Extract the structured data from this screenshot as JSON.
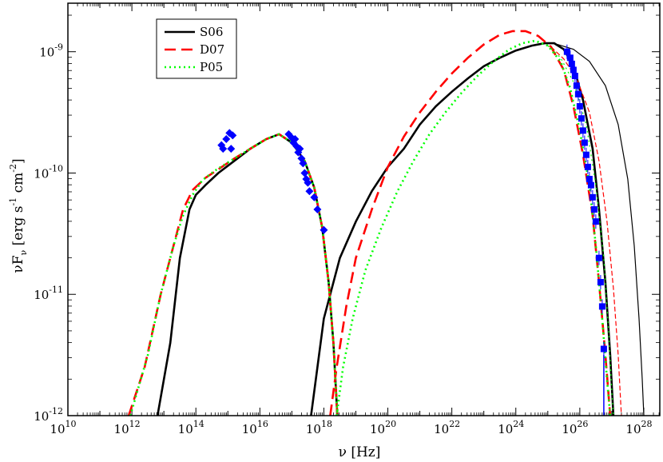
{
  "chart_data": {
    "type": "line",
    "title": "",
    "xlabel": {
      "main": "ν [Hz]"
    },
    "ylabel": {
      "main": "νF",
      "sub": "ν",
      "bracket": "[erg s",
      "exp1": "-1",
      "cm": " cm",
      "exp2": "-2",
      "close": "]"
    },
    "x_scale": "log",
    "y_scale": "log",
    "xlim_log10": [
      10,
      28.5
    ],
    "ylim_log10": [
      -12,
      -8.6
    ],
    "x_ticks": [
      {
        "base": "10",
        "exp": "10",
        "v": 10
      },
      {
        "base": "10",
        "exp": "12",
        "v": 12
      },
      {
        "base": "10",
        "exp": "14",
        "v": 14
      },
      {
        "base": "10",
        "exp": "16",
        "v": 16
      },
      {
        "base": "10",
        "exp": "18",
        "v": 18
      },
      {
        "base": "10",
        "exp": "20",
        "v": 20
      },
      {
        "base": "10",
        "exp": "22",
        "v": 22
      },
      {
        "base": "10",
        "exp": "24",
        "v": 24
      },
      {
        "base": "10",
        "exp": "26",
        "v": 26
      },
      {
        "base": "10",
        "exp": "28",
        "v": 28
      }
    ],
    "y_ticks": [
      {
        "base": "10",
        "exp": "-12",
        "v": -12
      },
      {
        "base": "10",
        "exp": "-11",
        "v": -11
      },
      {
        "base": "10",
        "exp": "-10",
        "v": -10
      },
      {
        "base": "10",
        "exp": "-9",
        "v": -9
      }
    ],
    "legend": {
      "position": "top-left"
    },
    "series": [
      {
        "name": "S06",
        "color": "#000000",
        "dash": "solid",
        "sync": [
          [
            12.8,
            -12
          ],
          [
            13.2,
            -11.4
          ],
          [
            13.5,
            -10.7
          ],
          [
            13.8,
            -10.3
          ],
          [
            14.0,
            -10.18
          ],
          [
            14.3,
            -10.1
          ],
          [
            14.7,
            -10.0
          ],
          [
            15.2,
            -9.9
          ],
          [
            15.7,
            -9.8
          ],
          [
            16.2,
            -9.72
          ],
          [
            16.6,
            -9.68
          ],
          [
            17.0,
            -9.75
          ],
          [
            17.4,
            -9.9
          ],
          [
            17.7,
            -10.12
          ],
          [
            17.95,
            -10.45
          ],
          [
            18.15,
            -10.9
          ],
          [
            18.3,
            -11.4
          ],
          [
            18.42,
            -12
          ]
        ],
        "ic": [
          [
            17.6,
            -12
          ],
          [
            17.8,
            -11.6
          ],
          [
            18.0,
            -11.2
          ],
          [
            18.5,
            -10.7
          ],
          [
            19.0,
            -10.4
          ],
          [
            19.5,
            -10.15
          ],
          [
            20.0,
            -9.95
          ],
          [
            20.5,
            -9.8
          ],
          [
            21.0,
            -9.6
          ],
          [
            21.5,
            -9.45
          ],
          [
            22.0,
            -9.33
          ],
          [
            22.5,
            -9.22
          ],
          [
            23.0,
            -9.12
          ],
          [
            23.5,
            -9.05
          ],
          [
            24.0,
            -8.99
          ],
          [
            24.5,
            -8.95
          ],
          [
            24.9,
            -8.93
          ],
          [
            25.2,
            -8.93
          ],
          [
            25.5,
            -8.98
          ],
          [
            25.8,
            -9.12
          ],
          [
            26.1,
            -9.4
          ],
          [
            26.4,
            -9.8
          ],
          [
            26.6,
            -10.3
          ],
          [
            26.8,
            -10.9
          ],
          [
            26.95,
            -11.5
          ],
          [
            27.05,
            -12
          ]
        ],
        "ic_thin": [
          [
            25.3,
            -8.94
          ],
          [
            25.8,
            -8.98
          ],
          [
            26.3,
            -9.08
          ],
          [
            26.8,
            -9.28
          ],
          [
            27.2,
            -9.6
          ],
          [
            27.5,
            -10.05
          ],
          [
            27.7,
            -10.6
          ],
          [
            27.85,
            -11.2
          ],
          [
            27.95,
            -11.7
          ],
          [
            28.0,
            -12
          ]
        ]
      },
      {
        "name": "D07",
        "color": "#ff0000",
        "dash": "long",
        "sync": [
          [
            11.9,
            -12
          ],
          [
            12.4,
            -11.6
          ],
          [
            12.9,
            -11.0
          ],
          [
            13.3,
            -10.6
          ],
          [
            13.6,
            -10.3
          ],
          [
            13.9,
            -10.14
          ],
          [
            14.3,
            -10.04
          ],
          [
            14.7,
            -9.97
          ],
          [
            15.2,
            -9.88
          ],
          [
            15.7,
            -9.8
          ],
          [
            16.2,
            -9.72
          ],
          [
            16.6,
            -9.68
          ],
          [
            17.0,
            -9.75
          ],
          [
            17.4,
            -9.9
          ],
          [
            17.7,
            -10.12
          ],
          [
            17.95,
            -10.45
          ],
          [
            18.15,
            -10.9
          ],
          [
            18.3,
            -11.4
          ],
          [
            18.42,
            -12
          ]
        ],
        "ic": [
          [
            18.2,
            -12
          ],
          [
            18.4,
            -11.6
          ],
          [
            18.7,
            -11.1
          ],
          [
            19.0,
            -10.7
          ],
          [
            19.5,
            -10.3
          ],
          [
            20.0,
            -9.95
          ],
          [
            20.5,
            -9.7
          ],
          [
            21.0,
            -9.5
          ],
          [
            21.5,
            -9.33
          ],
          [
            22.0,
            -9.18
          ],
          [
            22.5,
            -9.05
          ],
          [
            23.0,
            -8.94
          ],
          [
            23.5,
            -8.86
          ],
          [
            23.9,
            -8.83
          ],
          [
            24.3,
            -8.83
          ],
          [
            24.7,
            -8.87
          ],
          [
            25.1,
            -8.96
          ],
          [
            25.5,
            -9.15
          ],
          [
            25.8,
            -9.45
          ],
          [
            26.1,
            -9.85
          ],
          [
            26.4,
            -10.35
          ],
          [
            26.6,
            -10.9
          ],
          [
            26.8,
            -11.5
          ],
          [
            26.95,
            -12
          ]
        ],
        "ic_thin": [
          [
            25.1,
            -8.96
          ],
          [
            25.5,
            -9.06
          ],
          [
            25.9,
            -9.22
          ],
          [
            26.3,
            -9.5
          ],
          [
            26.6,
            -9.9
          ],
          [
            26.85,
            -10.4
          ],
          [
            27.05,
            -10.95
          ],
          [
            27.2,
            -11.5
          ],
          [
            27.3,
            -12
          ]
        ]
      },
      {
        "name": "P05",
        "color": "#00ff00",
        "dash": "dotted",
        "sync": [
          [
            11.95,
            -12
          ],
          [
            12.5,
            -11.5
          ],
          [
            12.9,
            -11.0
          ],
          [
            13.3,
            -10.6
          ],
          [
            13.6,
            -10.35
          ],
          [
            13.9,
            -10.18
          ],
          [
            14.2,
            -10.06
          ],
          [
            14.6,
            -9.98
          ],
          [
            15.2,
            -9.88
          ],
          [
            15.7,
            -9.8
          ],
          [
            16.2,
            -9.72
          ],
          [
            16.6,
            -9.68
          ],
          [
            17.0,
            -9.75
          ],
          [
            17.4,
            -9.9
          ],
          [
            17.7,
            -10.12
          ],
          [
            17.95,
            -10.45
          ],
          [
            18.15,
            -10.9
          ],
          [
            18.3,
            -11.4
          ],
          [
            18.42,
            -12
          ]
        ],
        "ic": [
          [
            18.4,
            -12
          ],
          [
            18.6,
            -11.6
          ],
          [
            18.9,
            -11.2
          ],
          [
            19.3,
            -10.8
          ],
          [
            19.8,
            -10.45
          ],
          [
            20.3,
            -10.15
          ],
          [
            20.8,
            -9.9
          ],
          [
            21.3,
            -9.68
          ],
          [
            21.8,
            -9.5
          ],
          [
            22.3,
            -9.34
          ],
          [
            22.8,
            -9.2
          ],
          [
            23.3,
            -9.08
          ],
          [
            23.8,
            -8.98
          ],
          [
            24.2,
            -8.93
          ],
          [
            24.6,
            -8.91
          ],
          [
            25.0,
            -8.95
          ],
          [
            25.4,
            -9.08
          ],
          [
            25.7,
            -9.3
          ],
          [
            26.0,
            -9.65
          ],
          [
            26.3,
            -10.1
          ],
          [
            26.5,
            -10.6
          ],
          [
            26.7,
            -11.2
          ],
          [
            26.85,
            -11.7
          ],
          [
            26.95,
            -12
          ]
        ],
        "ic_thin": [
          [
            25.0,
            -8.95
          ],
          [
            25.4,
            -9.05
          ],
          [
            25.8,
            -9.25
          ],
          [
            26.2,
            -9.6
          ],
          [
            26.5,
            -10.1
          ],
          [
            26.75,
            -10.7
          ],
          [
            26.9,
            -11.3
          ],
          [
            27.0,
            -11.8
          ],
          [
            27.05,
            -12
          ]
        ]
      }
    ],
    "observations": {
      "color": "#0000ff",
      "diamonds": [
        [
          14.8,
          -9.77
        ],
        [
          14.85,
          -9.8
        ],
        [
          14.95,
          -9.72
        ],
        [
          15.05,
          -9.67
        ],
        [
          15.1,
          -9.8
        ],
        [
          15.15,
          -9.69
        ],
        [
          16.9,
          -9.68
        ],
        [
          17.0,
          -9.71
        ],
        [
          17.05,
          -9.75
        ],
        [
          17.1,
          -9.72
        ],
        [
          17.15,
          -9.78
        ],
        [
          17.2,
          -9.83
        ],
        [
          17.25,
          -9.8
        ],
        [
          17.3,
          -9.88
        ],
        [
          17.35,
          -9.92
        ],
        [
          17.4,
          -10.0
        ],
        [
          17.45,
          -10.05
        ],
        [
          17.5,
          -10.08
        ],
        [
          17.55,
          -10.15
        ],
        [
          17.7,
          -10.2
        ],
        [
          17.8,
          -10.3
        ],
        [
          18.0,
          -10.47
        ]
      ],
      "squares": [
        [
          25.6,
          -9.0
        ],
        [
          25.7,
          -9.05
        ],
        [
          25.75,
          -9.1
        ],
        [
          25.8,
          -9.15
        ],
        [
          25.85,
          -9.2
        ],
        [
          25.9,
          -9.28
        ],
        [
          25.95,
          -9.35
        ],
        [
          26.0,
          -9.45
        ],
        [
          26.05,
          -9.55
        ],
        [
          26.1,
          -9.65
        ],
        [
          26.15,
          -9.75
        ],
        [
          26.2,
          -9.85
        ],
        [
          26.25,
          -9.95
        ],
        [
          26.3,
          -10.05
        ],
        [
          26.35,
          -10.1
        ],
        [
          26.4,
          -10.2
        ],
        [
          26.45,
          -10.3
        ],
        [
          26.5,
          -10.4
        ],
        [
          26.6,
          -10.7
        ],
        [
          26.65,
          -10.9
        ],
        [
          26.7,
          -11.1
        ],
        [
          26.75,
          -11.45
        ]
      ],
      "vline_x": 26.75
    }
  }
}
